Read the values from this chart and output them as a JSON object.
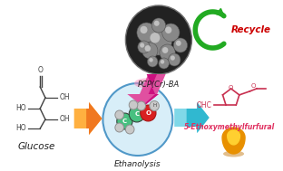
{
  "bg_color": "#ffffff",
  "glucose_label": "Glucose",
  "ethanolysis_label": "Ethanolysis",
  "pcp_label": "PCP(Cr)-BA",
  "recycle_label": "Recycle",
  "emf_label": "5-Ethoxymethylfurfural",
  "arrow_orange_color": "#F07820",
  "arrow_orange_light": "#FFB040",
  "arrow_teal_color": "#30B8D0",
  "arrow_teal_light": "#80D8E8",
  "arrow_magenta_color": "#CC1080",
  "arrow_magenta_light": "#E050A0",
  "arrow_green_color": "#22AA22",
  "recycle_text_color": "#CC0000",
  "emf_text_color": "#E03060",
  "pcp_bg_dark": "#222222",
  "pcp_bg_mid": "#555555",
  "pcp_sphere_light": "#C0C0C0",
  "pcp_sphere_mid": "#888888",
  "eth_circle_fill": "#D8EEF8",
  "eth_circle_edge": "#5098C8",
  "glucose_color": "#404040",
  "emf_color": "#C83050",
  "drop_outer": "#E89000",
  "drop_inner": "#FFD030",
  "drop_shadow": "#C07000",
  "pink_glow": "#FF90C0"
}
